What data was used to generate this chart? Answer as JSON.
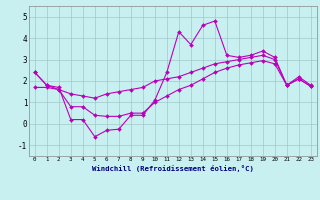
{
  "xlabel": "Windchill (Refroidissement éolien,°C)",
  "background_color": "#c8f0f0",
  "line_color": "#bb00bb",
  "x": [
    0,
    1,
    2,
    3,
    4,
    5,
    6,
    7,
    8,
    9,
    10,
    11,
    12,
    13,
    14,
    15,
    16,
    17,
    18,
    19,
    20,
    21,
    22,
    23
  ],
  "line1": [
    2.4,
    1.8,
    1.7,
    0.2,
    0.2,
    -0.6,
    -0.3,
    -0.25,
    0.4,
    0.4,
    1.1,
    2.4,
    4.3,
    3.7,
    4.6,
    4.8,
    3.2,
    3.1,
    3.2,
    3.4,
    3.1,
    1.8,
    2.2,
    1.8
  ],
  "line2": [
    1.7,
    1.7,
    1.6,
    1.4,
    1.3,
    1.2,
    1.4,
    1.5,
    1.6,
    1.7,
    2.0,
    2.1,
    2.2,
    2.4,
    2.6,
    2.8,
    2.9,
    3.0,
    3.1,
    3.2,
    3.0,
    1.8,
    2.1,
    1.75
  ],
  "line3": [
    2.4,
    1.8,
    1.6,
    0.8,
    0.8,
    0.4,
    0.35,
    0.35,
    0.5,
    0.5,
    1.0,
    1.3,
    1.6,
    1.8,
    2.1,
    2.4,
    2.6,
    2.75,
    2.85,
    2.95,
    2.8,
    1.8,
    2.1,
    1.75
  ],
  "ylim": [
    -1.5,
    5.5
  ],
  "yticks": [
    -1,
    0,
    1,
    2,
    3,
    4,
    5
  ],
  "grid_color": "#a0c8c8",
  "spine_color": "#888888"
}
